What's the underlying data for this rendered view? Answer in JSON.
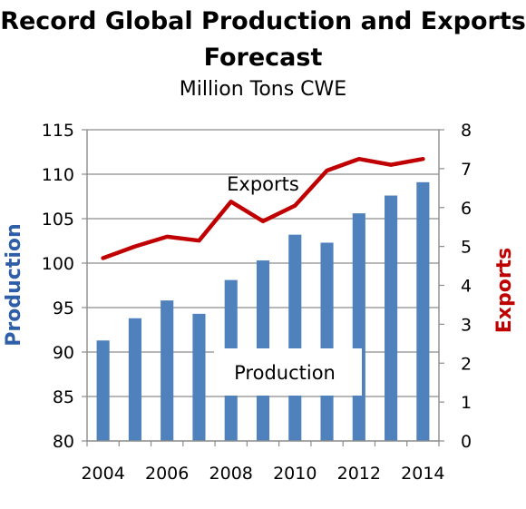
{
  "chart_data": {
    "type": "bar",
    "title": "Record Global Production and Exports Forecast",
    "subtitle": "Million Tons CWE",
    "categories": [
      "2004",
      "2005",
      "2006",
      "2007",
      "2008",
      "2009",
      "2010",
      "2011",
      "2012",
      "2013",
      "2014"
    ],
    "x_tick_labels": [
      "2004",
      "2006",
      "2008",
      "2010",
      "2012",
      "2014"
    ],
    "series": [
      {
        "name": "Production",
        "type": "bar",
        "axis": "left",
        "color": "#4f81bd",
        "values": [
          91.3,
          93.8,
          95.8,
          94.3,
          98.1,
          100.3,
          103.2,
          102.3,
          105.6,
          107.6,
          109.1
        ]
      },
      {
        "name": "Exports",
        "type": "line",
        "axis": "right",
        "color": "#c00000",
        "values": [
          4.7,
          5.0,
          5.25,
          5.15,
          6.15,
          5.65,
          6.05,
          6.95,
          7.25,
          7.1,
          7.25
        ]
      }
    ],
    "ylabel": "Production",
    "ylabel_color": "#2e5ea8",
    "ylim": [
      80,
      115
    ],
    "yticks": [
      80,
      85,
      90,
      95,
      100,
      105,
      110,
      115
    ],
    "y2label": "Exports",
    "y2label_color": "#c00000",
    "y2lim": [
      0,
      8
    ],
    "y2ticks": [
      0,
      1,
      2,
      3,
      4,
      5,
      6,
      7,
      8
    ],
    "grid": true,
    "annotations": {
      "exports": "Exports",
      "production": "Production"
    }
  }
}
